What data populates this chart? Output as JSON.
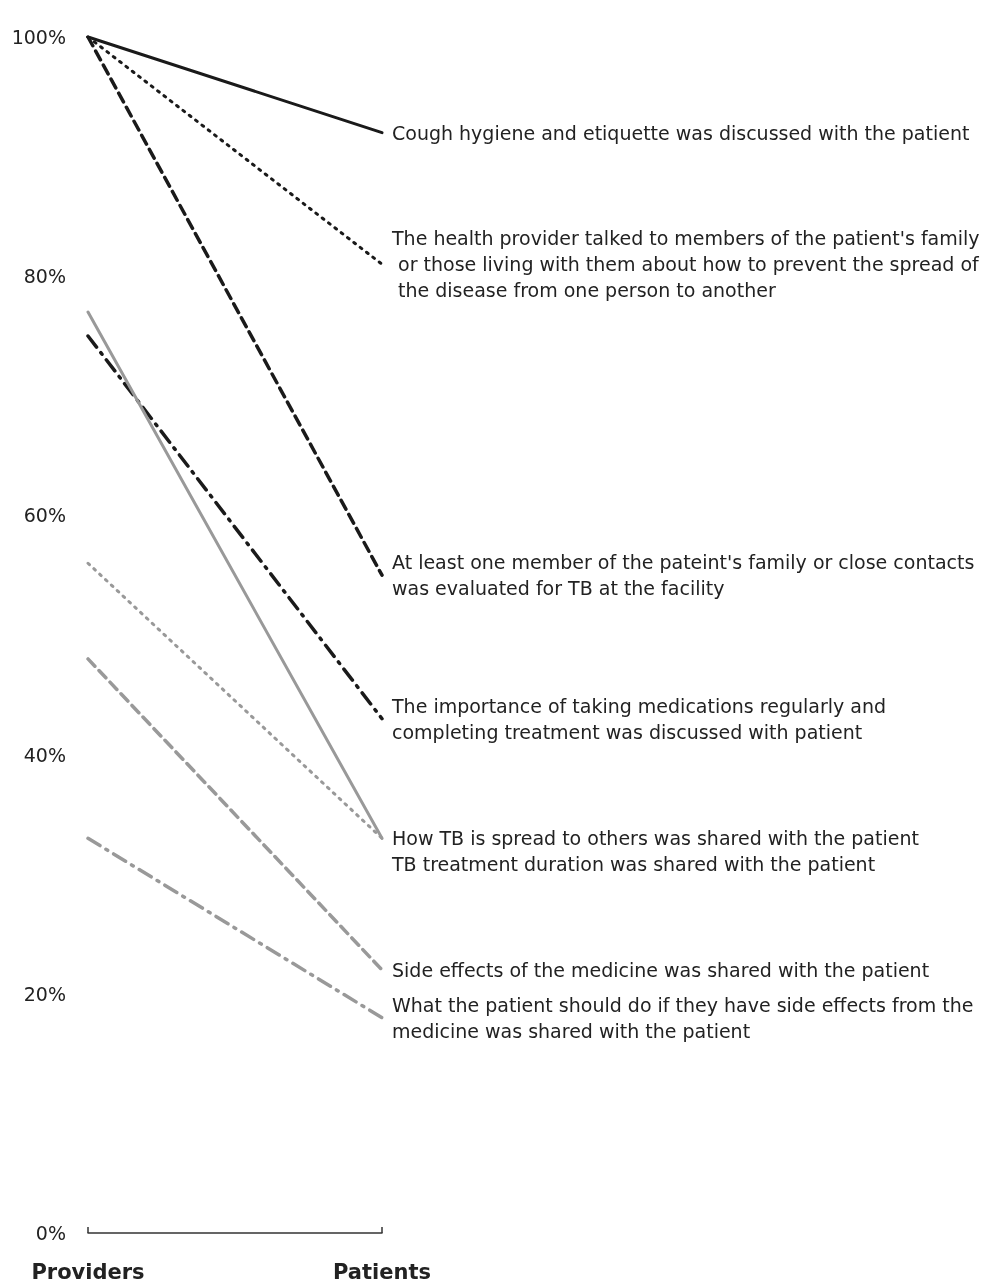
{
  "chart_data": {
    "type": "line",
    "categories": [
      "Providers",
      "Patients"
    ],
    "ylim": [
      0,
      100
    ],
    "yticks": [
      {
        "value": 0,
        "label": "0%"
      },
      {
        "value": 20,
        "label": "20%"
      },
      {
        "value": 40,
        "label": "40%"
      },
      {
        "value": 60,
        "label": "60%"
      },
      {
        "value": 80,
        "label": "80%"
      },
      {
        "value": 100,
        "label": "100%"
      }
    ],
    "grid": false,
    "legend": false,
    "marker": "none",
    "series": [
      {
        "name": "Cough hygiene and etiquette was discussed with the patient",
        "color": "#1a1a1a",
        "line_style": "solid",
        "values": [
          100,
          92
        ]
      },
      {
        "name": "The health provider talked to members of the patient's family or those living with them about how to prevent the spread of the disease from one person to another",
        "color": "#1a1a1a",
        "line_style": "dotted",
        "values": [
          100,
          81
        ]
      },
      {
        "name": "At least one member of the pateint's family or close contacts was evaluated for TB at the facility",
        "color": "#1a1a1a",
        "line_style": "dashed",
        "values": [
          100,
          55
        ]
      },
      {
        "name": "The importance of taking medications regularly and completing treatment was discussed with patient",
        "color": "#1a1a1a",
        "line_style": "dashdot",
        "values": [
          75,
          43
        ]
      },
      {
        "name": "How TB is spread to others was shared with the patient",
        "color": "#999999",
        "line_style": "solid",
        "values": [
          77,
          33
        ]
      },
      {
        "name": "TB treatment duration was shared with the patient",
        "color": "#999999",
        "line_style": "dotted",
        "values": [
          56,
          33
        ]
      },
      {
        "name": "Side effects of the medicine was shared with the patient",
        "color": "#999999",
        "line_style": "dashed",
        "values": [
          48,
          22
        ]
      },
      {
        "name": "What the patient should do if they have side effects from the medicine was shared with the patient",
        "color": "#999999",
        "line_style": "dashdot",
        "values": [
          33,
          18
        ]
      }
    ]
  }
}
